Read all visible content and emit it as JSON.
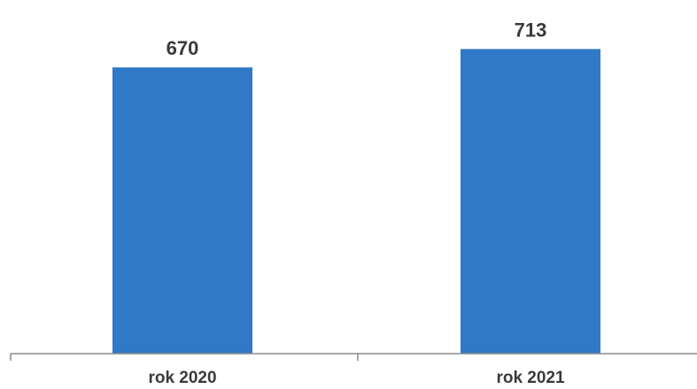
{
  "chart_data": {
    "type": "bar",
    "categories": [
      "rok 2020",
      "rok 2021"
    ],
    "values": [
      670,
      713
    ],
    "data_labels": [
      "670",
      "713"
    ],
    "title": "",
    "xlabel": "",
    "ylabel": "",
    "ylim": [
      0,
      745
    ],
    "grid": false,
    "legend": "none",
    "colors": {
      "bar": "#2f79c6",
      "axis": "#8a8a8a",
      "label_text": "#3a3a3a"
    }
  }
}
